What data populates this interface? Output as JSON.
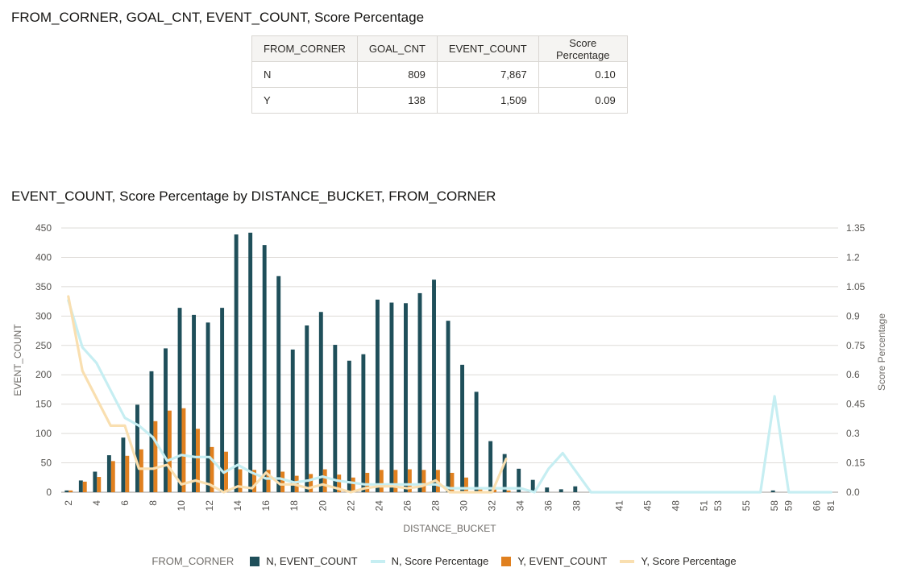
{
  "table_title": "FROM_CORNER, GOAL_CNT, EVENT_COUNT, Score Percentage",
  "table": {
    "headers": [
      "FROM_CORNER",
      "GOAL_CNT",
      "EVENT_COUNT",
      "Score Percentage"
    ],
    "rows": [
      [
        "N",
        "809",
        "7,867",
        "0.10"
      ],
      [
        "Y",
        "138",
        "1,509",
        "0.09"
      ]
    ]
  },
  "chart_data": {
    "type": "bar",
    "title": "EVENT_COUNT, Score Percentage by DISTANCE_BUCKET, FROM_CORNER",
    "xlabel": "DISTANCE_BUCKET",
    "ylabel": "EVENT_COUNT",
    "y2label": "Score Percentage",
    "ylim": [
      0,
      450
    ],
    "y2lim": [
      0,
      1.35
    ],
    "y_ticks": [
      "0",
      "50",
      "100",
      "150",
      "200",
      "250",
      "300",
      "350",
      "400",
      "450"
    ],
    "y2_ticks": [
      "0.0",
      "0.15",
      "0.3",
      "0.45",
      "0.6",
      "0.75",
      "0.9",
      "1.05",
      "1.2",
      "1.35"
    ],
    "categories": [
      "2",
      "3",
      "4",
      "5",
      "6",
      "7",
      "8",
      "9",
      "10",
      "11",
      "12",
      "13",
      "14",
      "15",
      "16",
      "17",
      "18",
      "19",
      "20",
      "21",
      "22",
      "23",
      "24",
      "25",
      "26",
      "27",
      "28",
      "29",
      "30",
      "31",
      "32",
      "33",
      "34",
      "35",
      "36",
      "37",
      "38",
      "39",
      "40",
      "41",
      "43",
      "45",
      "46",
      "48",
      "49",
      "51",
      "53",
      "54",
      "55",
      "57",
      "58",
      "59",
      "61",
      "66",
      "81"
    ],
    "x_tick_labels": [
      "2",
      "4",
      "6",
      "8",
      "10",
      "12",
      "14",
      "16",
      "18",
      "20",
      "22",
      "24",
      "26",
      "28",
      "30",
      "32",
      "34",
      "36",
      "38",
      "41",
      "45",
      "48",
      "51",
      "53",
      "55",
      "58",
      "59",
      "66",
      "81"
    ],
    "legend_title": "FROM_CORNER",
    "grid": true,
    "legend_position": "bottom",
    "series": [
      {
        "name": "N, EVENT_COUNT",
        "type": "bar",
        "axis": "left",
        "color": "#1f4f5a",
        "values": [
          3,
          20,
          35,
          63,
          93,
          149,
          206,
          245,
          314,
          302,
          289,
          314,
          439,
          442,
          421,
          368,
          243,
          284,
          307,
          251,
          224,
          235,
          328,
          323,
          322,
          339,
          362,
          292,
          217,
          171,
          87,
          65,
          40,
          21,
          8,
          5,
          10,
          0,
          0,
          0,
          0,
          0,
          0,
          0,
          0,
          0,
          0,
          0,
          0,
          0,
          3,
          0,
          0,
          0,
          0
        ]
      },
      {
        "name": "N, Score Percentage",
        "type": "line",
        "axis": "right",
        "color": "#c6eef2",
        "values": [
          0.98,
          0.74,
          0.66,
          0.52,
          0.38,
          0.34,
          0.28,
          0.16,
          0.19,
          0.18,
          0.18,
          0.1,
          0.14,
          0.1,
          0.07,
          0.07,
          0.05,
          0.06,
          0.08,
          0.06,
          0.05,
          0.04,
          0.04,
          0.04,
          0.04,
          0.04,
          0.04,
          0.02,
          0.02,
          0.02,
          0.02,
          0.02,
          0.02,
          0.0,
          0.12,
          0.2,
          0.1,
          0.0,
          0.0,
          0.0,
          0.0,
          0.0,
          0.0,
          0.0,
          0.0,
          0.0,
          0.0,
          0.0,
          0.0,
          0.0,
          0.49,
          0.0,
          0.0,
          0.0,
          0.0
        ]
      },
      {
        "name": "Y, EVENT_COUNT",
        "type": "bar",
        "axis": "left",
        "color": "#e0801f",
        "values": [
          3,
          18,
          26,
          53,
          62,
          73,
          121,
          139,
          143,
          108,
          77,
          69,
          39,
          38,
          38,
          35,
          28,
          31,
          39,
          30,
          25,
          33,
          38,
          38,
          39,
          38,
          38,
          33,
          25,
          7,
          5,
          3,
          null,
          null,
          null,
          null,
          null,
          null,
          null,
          null,
          null,
          null,
          null,
          null,
          null,
          null,
          null,
          null,
          null,
          null,
          null,
          null,
          null,
          null,
          null
        ]
      },
      {
        "name": "Y, Score Percentage",
        "type": "line",
        "axis": "right",
        "color": "#f9dfb0",
        "values": [
          1.0,
          0.62,
          0.48,
          0.34,
          0.34,
          0.12,
          0.12,
          0.14,
          0.04,
          0.06,
          0.04,
          0.0,
          0.03,
          0.02,
          0.1,
          0.04,
          0.04,
          0.02,
          0.04,
          0.02,
          0.0,
          0.02,
          0.03,
          0.03,
          0.02,
          0.03,
          0.06,
          0.0,
          0.0,
          0.0,
          0.0,
          0.17,
          null,
          null,
          null,
          null,
          null,
          null,
          null,
          null,
          null,
          null,
          null,
          null,
          null,
          null,
          null,
          null,
          null,
          null,
          null,
          null,
          null,
          null,
          null
        ]
      }
    ]
  }
}
